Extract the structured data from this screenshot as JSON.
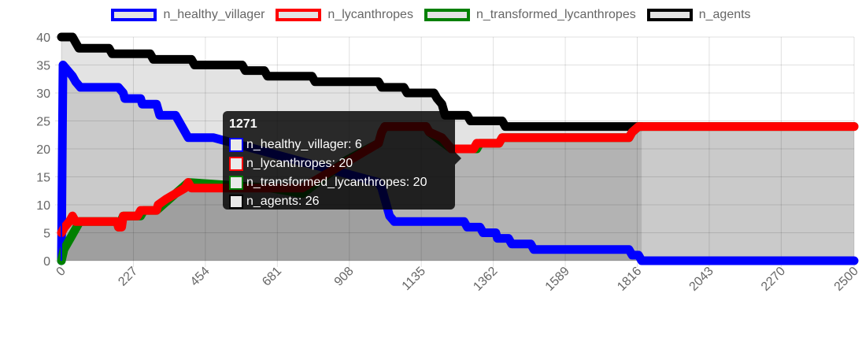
{
  "chart_data": {
    "type": "line",
    "x_ticks": [
      "0",
      "227",
      "454",
      "681",
      "908",
      "1135",
      "1362",
      "1589",
      "1816",
      "2043",
      "2270",
      "2500"
    ],
    "y_ticks": [
      "0",
      "5",
      "10",
      "15",
      "20",
      "25",
      "30",
      "35",
      "40"
    ],
    "xlim": [
      0,
      2500
    ],
    "ylim": [
      0,
      40
    ],
    "grid": true,
    "legend_position": "top",
    "series": [
      {
        "name": "n_healthy_villager",
        "color": "#0000ff",
        "points": [
          [
            0,
            0
          ],
          [
            5,
            35
          ],
          [
            20,
            34
          ],
          [
            35,
            33
          ],
          [
            45,
            32
          ],
          [
            60,
            31
          ],
          [
            180,
            31
          ],
          [
            195,
            30
          ],
          [
            200,
            29
          ],
          [
            250,
            29
          ],
          [
            255,
            28
          ],
          [
            300,
            28
          ],
          [
            305,
            27
          ],
          [
            310,
            26
          ],
          [
            360,
            26
          ],
          [
            370,
            25
          ],
          [
            380,
            24
          ],
          [
            390,
            23
          ],
          [
            400,
            22
          ],
          [
            480,
            22
          ],
          [
            1000,
            14
          ],
          [
            1010,
            13
          ],
          [
            1025,
            10
          ],
          [
            1035,
            8
          ],
          [
            1050,
            7
          ],
          [
            1270,
            7
          ],
          [
            1280,
            6
          ],
          [
            1320,
            6
          ],
          [
            1330,
            5
          ],
          [
            1370,
            5
          ],
          [
            1375,
            4
          ],
          [
            1410,
            4
          ],
          [
            1420,
            3
          ],
          [
            1480,
            3
          ],
          [
            1490,
            2
          ],
          [
            1790,
            2
          ],
          [
            1800,
            1
          ],
          [
            1820,
            1
          ],
          [
            1830,
            0
          ],
          [
            2500,
            0
          ]
        ]
      },
      {
        "name": "n_lycanthropes",
        "color": "#ff0000",
        "points": [
          [
            0,
            5
          ],
          [
            10,
            6
          ],
          [
            25,
            7
          ],
          [
            35,
            8
          ],
          [
            45,
            7
          ],
          [
            175,
            7
          ],
          [
            180,
            6
          ],
          [
            190,
            6
          ],
          [
            195,
            8
          ],
          [
            240,
            8
          ],
          [
            250,
            9
          ],
          [
            300,
            9
          ],
          [
            305,
            10
          ],
          [
            330,
            11
          ],
          [
            360,
            12
          ],
          [
            390,
            13
          ],
          [
            400,
            14
          ],
          [
            410,
            13
          ],
          [
            660,
            13
          ],
          [
            760,
            13
          ],
          [
            1000,
            21
          ],
          [
            1010,
            23
          ],
          [
            1020,
            24
          ],
          [
            1150,
            24
          ],
          [
            1160,
            23
          ],
          [
            1200,
            22
          ],
          [
            1230,
            20
          ],
          [
            1260,
            20
          ],
          [
            1300,
            20
          ],
          [
            1310,
            21
          ],
          [
            1380,
            21
          ],
          [
            1390,
            22
          ],
          [
            1790,
            22
          ],
          [
            1800,
            23
          ],
          [
            1820,
            24
          ],
          [
            2500,
            24
          ]
        ]
      },
      {
        "name": "n_transformed_lycanthropes",
        "color": "#008000",
        "points": [
          [
            0,
            0
          ],
          [
            8,
            2
          ],
          [
            18,
            3
          ],
          [
            28,
            4
          ],
          [
            38,
            5
          ],
          [
            48,
            6
          ],
          [
            58,
            7
          ],
          [
            175,
            7
          ],
          [
            180,
            6
          ],
          [
            195,
            8
          ],
          [
            250,
            8
          ],
          [
            260,
            9
          ],
          [
            300,
            9
          ],
          [
            320,
            10
          ],
          [
            360,
            12
          ],
          [
            400,
            14
          ],
          [
            660,
            13
          ],
          [
            760,
            12
          ],
          [
            900,
            18
          ],
          [
            1000,
            21
          ],
          [
            1010,
            23
          ],
          [
            1020,
            24
          ],
          [
            1150,
            24
          ],
          [
            1160,
            23
          ],
          [
            1230,
            20
          ],
          [
            1310,
            20
          ],
          [
            1320,
            21
          ],
          [
            1380,
            21
          ],
          [
            1390,
            22
          ],
          [
            1790,
            22
          ],
          [
            1800,
            23
          ],
          [
            1820,
            24
          ],
          [
            2500,
            24
          ]
        ]
      },
      {
        "name": "n_agents",
        "color": "#000000",
        "points": [
          [
            0,
            40
          ],
          [
            35,
            40
          ],
          [
            45,
            39
          ],
          [
            55,
            38
          ],
          [
            150,
            38
          ],
          [
            160,
            37
          ],
          [
            280,
            37
          ],
          [
            290,
            36
          ],
          [
            410,
            36
          ],
          [
            420,
            35
          ],
          [
            570,
            35
          ],
          [
            580,
            34
          ],
          [
            640,
            34
          ],
          [
            650,
            33
          ],
          [
            790,
            33
          ],
          [
            800,
            32
          ],
          [
            1000,
            32
          ],
          [
            1010,
            31
          ],
          [
            1080,
            31
          ],
          [
            1090,
            30
          ],
          [
            1175,
            30
          ],
          [
            1185,
            29
          ],
          [
            1200,
            28
          ],
          [
            1205,
            27
          ],
          [
            1210,
            26
          ],
          [
            1280,
            26
          ],
          [
            1290,
            25
          ],
          [
            1390,
            25
          ],
          [
            1400,
            24
          ],
          [
            1830,
            24
          ]
        ]
      }
    ],
    "tooltip": {
      "title": "1271",
      "lines": [
        "n_healthy_villager: 6",
        "n_lycanthropes: 20",
        "n_transformed_lycanthropes: 20",
        "n_agents: 26"
      ]
    }
  }
}
